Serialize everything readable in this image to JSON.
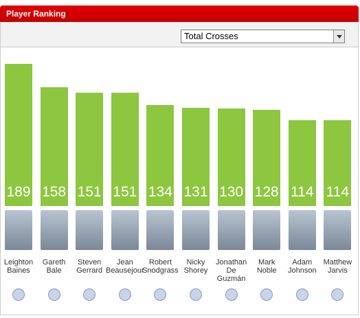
{
  "header": {
    "title": "Player Ranking"
  },
  "dropdown": {
    "selected": "Total Crosses"
  },
  "chart_data": {
    "type": "bar",
    "categories": [
      "Leighton Baines",
      "Gareth Bale",
      "Steven Gerrard",
      "Jean Beausejour",
      "Robert Snodgrass",
      "Nicky Shorey",
      "Jonathan De Guzmán",
      "Mark Noble",
      "Adam Johnson",
      "Matthew Jarvis"
    ],
    "values": [
      189,
      158,
      151,
      151,
      134,
      131,
      130,
      128,
      114,
      114
    ],
    "color": "#8dc63f"
  }
}
